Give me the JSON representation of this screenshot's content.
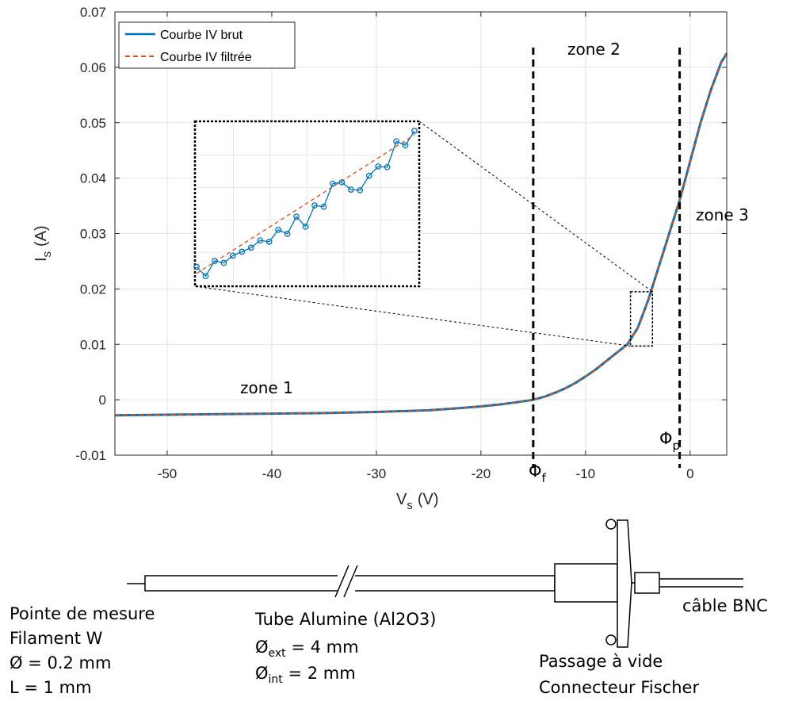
{
  "chart_data": {
    "type": "line",
    "xlabel": "V",
    "xlabel_sub": "s",
    "xlabel_unit": "(V)",
    "ylabel": "I",
    "ylabel_sub": "s",
    "ylabel_unit": "(A)",
    "xlim": [
      -55,
      3.5
    ],
    "ylim": [
      -0.01,
      0.07
    ],
    "xticks": [
      -50,
      -40,
      -30,
      -20,
      -10,
      0
    ],
    "xtick_labels": [
      "-50",
      "-40",
      "-30",
      "-20",
      "-10",
      "0"
    ],
    "yticks": [
      -0.01,
      0,
      0.01,
      0.02,
      0.03,
      0.04,
      0.05,
      0.06,
      0.07
    ],
    "ytick_labels": [
      "-0.01",
      "0",
      "0.01",
      "0.02",
      "0.03",
      "0.04",
      "0.05",
      "0.06",
      "0.07"
    ],
    "grid": true,
    "legend_position": "top-left",
    "series": [
      {
        "name": "Courbe IV brut",
        "color": "#0072BD",
        "style": "solid",
        "x": [
          -55,
          -50,
          -45,
          -40,
          -35,
          -30,
          -25,
          -22,
          -20,
          -18,
          -16,
          -15,
          -14,
          -13,
          -12,
          -11,
          -10,
          -9,
          -8,
          -7,
          -6,
          -5,
          -4,
          -3,
          -2,
          -1,
          0,
          1,
          2,
          3,
          3.5
        ],
        "y": [
          -0.0028,
          -0.0027,
          -0.0026,
          -0.0025,
          -0.0024,
          -0.0022,
          -0.0019,
          -0.0015,
          -0.0012,
          -0.0008,
          -0.0003,
          0.0,
          0.0005,
          0.0012,
          0.002,
          0.003,
          0.0042,
          0.0055,
          0.007,
          0.0085,
          0.01,
          0.013,
          0.018,
          0.024,
          0.03,
          0.036,
          0.043,
          0.05,
          0.056,
          0.061,
          0.0625
        ]
      },
      {
        "name": "Courbe IV filtrée",
        "color": "#D95319",
        "style": "dashed",
        "x": [
          -55,
          -50,
          -45,
          -40,
          -35,
          -30,
          -25,
          -22,
          -20,
          -18,
          -16,
          -15,
          -14,
          -13,
          -12,
          -11,
          -10,
          -9,
          -8,
          -7,
          -6,
          -5,
          -4,
          -3,
          -2,
          -1,
          0,
          1,
          2,
          3,
          3.5
        ],
        "y": [
          -0.0028,
          -0.0027,
          -0.0026,
          -0.0025,
          -0.0024,
          -0.0022,
          -0.0019,
          -0.0015,
          -0.0012,
          -0.0008,
          -0.0003,
          0.0,
          0.0005,
          0.0012,
          0.002,
          0.003,
          0.0042,
          0.0055,
          0.007,
          0.0085,
          0.01,
          0.013,
          0.018,
          0.024,
          0.03,
          0.036,
          0.043,
          0.05,
          0.056,
          0.061,
          0.0625
        ]
      }
    ],
    "vlines": [
      {
        "x": -15,
        "label": "Φ",
        "label_sub": "f"
      },
      {
        "x": -1,
        "label": "Φ",
        "label_sub": "p"
      }
    ],
    "zones": [
      {
        "label": "zone 1",
        "x": -38,
        "y": 0.0025
      },
      {
        "label": "zone 2",
        "x": -8.5,
        "y": 0.0625
      },
      {
        "label": "zone 3",
        "x": 3.5,
        "y": 0.032
      }
    ],
    "zoom_box": {
      "x0": -5.7,
      "x1": -3.6,
      "y0": 0.0097,
      "y1": 0.0195
    },
    "inset": {
      "color": "#0072BD",
      "filtered_color": "#D95319",
      "values": [
        0.0272,
        0.0258,
        0.0281,
        0.0278,
        0.0289,
        0.0295,
        0.0301,
        0.0312,
        0.031,
        0.0328,
        0.0322,
        0.0348,
        0.0333,
        0.0365,
        0.0363,
        0.0398,
        0.04,
        0.0389,
        0.0388,
        0.041,
        0.0424,
        0.0423,
        0.0462,
        0.0456,
        0.0478
      ]
    }
  },
  "diagram": {
    "labels": {
      "probe_line1": "Pointe de mesure",
      "probe_line2": "Filament W",
      "probe_line3": "Ø = 0.2 mm",
      "probe_line4": "L = 1 mm",
      "tube_line1": "Tube Alumine (Al2O3)",
      "tube_ext_prefix": "Ø",
      "tube_ext_sub": "ext",
      "tube_ext_value": " = 4 mm",
      "tube_int_prefix": "Ø",
      "tube_int_sub": "int",
      "tube_int_value": " = 2 mm",
      "vacuum_line1": "Passage à vide",
      "vacuum_line2": "Connecteur Fischer",
      "cable": "câble BNC"
    }
  }
}
